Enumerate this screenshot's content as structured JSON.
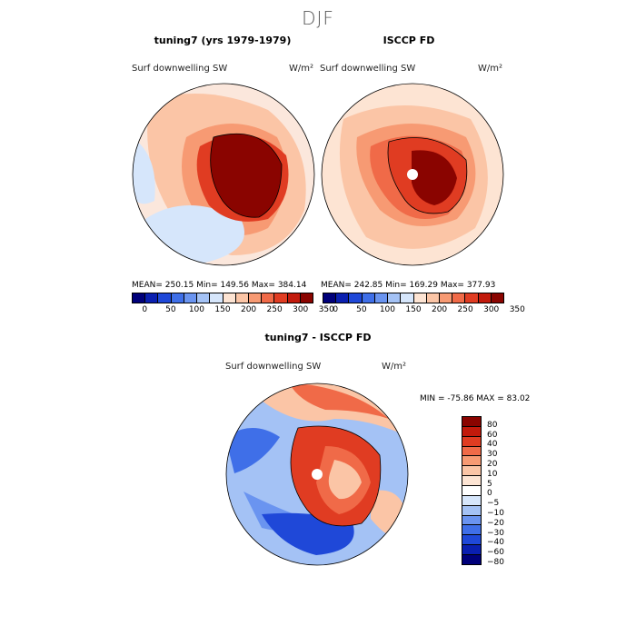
{
  "season_title": "DJF",
  "left_panel": {
    "title": "tuning7 (yrs 1979-1979)",
    "variable": "Surf downwelling SW",
    "units": "W/m²",
    "stats": "MEAN= 250.15   Min= 149.56   Max= 384.14"
  },
  "right_panel": {
    "title": "ISCCP FD",
    "variable": "Surf downwelling SW",
    "units": "W/m²",
    "stats": "MEAN= 242.85   Min= 169.29   Max= 377.93"
  },
  "abs_colorbar": {
    "colors": [
      "#00007a",
      "#0a1fb0",
      "#1f48d8",
      "#3f6fe8",
      "#6a94f0",
      "#a4c2f5",
      "#d6e6fb",
      "#fde4d3",
      "#fbc5a6",
      "#f79a73",
      "#f06a48",
      "#e03c22",
      "#c21a0c",
      "#8a0400"
    ],
    "labels": [
      "0",
      "50",
      "100",
      "150",
      "200",
      "250",
      "300",
      "350"
    ]
  },
  "diff_panel": {
    "title": "tuning7 - ISCCP FD",
    "variable": "Surf downwelling SW",
    "units": "W/m²",
    "stats": "MIN = -75.86  MAX =  83.02"
  },
  "diff_colorbar": {
    "colors": [
      "#8a0400",
      "#c21a0c",
      "#e03c22",
      "#f06a48",
      "#f79a73",
      "#fbc5a6",
      "#fde4d3",
      "#ffffff",
      "#d6e6fb",
      "#a4c2f5",
      "#6a94f0",
      "#3f6fe8",
      "#1f48d8",
      "#0a1fb0",
      "#00007a"
    ],
    "labels": [
      "80",
      "60",
      "40",
      "30",
      "20",
      "10",
      "5",
      "0",
      "−5",
      "−10",
      "−20",
      "−30",
      "−40",
      "−60",
      "−80"
    ]
  }
}
